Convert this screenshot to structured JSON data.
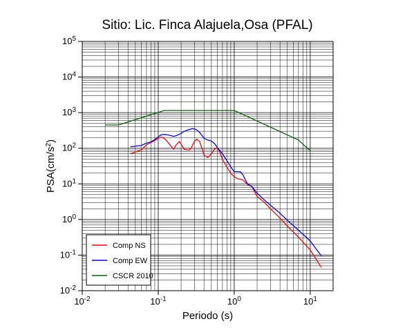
{
  "chart_data": {
    "type": "line",
    "title": "Sitio: Lic. Finca Alajuela,Osa (PFAL)",
    "xlabel": "Periodo (s)",
    "ylabel_main": "PSA(cm/s",
    "ylabel_sup": "2",
    "ylabel_end": ")",
    "xscale": "log",
    "yscale": "log",
    "xlim": [
      0.01,
      20
    ],
    "ylim": [
      0.01,
      100000
    ],
    "grid": true,
    "legend_placement": "bottom-left",
    "x_ticks": [
      {
        "value": 0.01,
        "base": "10",
        "exp": "-2"
      },
      {
        "value": 0.1,
        "base": "10",
        "exp": "-1"
      },
      {
        "value": 1,
        "base": "10",
        "exp": "0"
      },
      {
        "value": 10,
        "base": "10",
        "exp": "1"
      }
    ],
    "y_ticks": [
      {
        "value": 0.01,
        "base": "10",
        "exp": "-2"
      },
      {
        "value": 0.1,
        "base": "10",
        "exp": "-1"
      },
      {
        "value": 1,
        "base": "10",
        "exp": "0"
      },
      {
        "value": 10,
        "base": "10",
        "exp": "1"
      },
      {
        "value": 100,
        "base": "10",
        "exp": "2"
      },
      {
        "value": 1000,
        "base": "10",
        "exp": "3"
      },
      {
        "value": 10000,
        "base": "10",
        "exp": "4"
      },
      {
        "value": 100000,
        "base": "10",
        "exp": "5"
      }
    ],
    "series": [
      {
        "name": "Comp NS",
        "color": "#ff0000",
        "points": [
          [
            0.043,
            70
          ],
          [
            0.05,
            78
          ],
          [
            0.06,
            90
          ],
          [
            0.07,
            125
          ],
          [
            0.08,
            145
          ],
          [
            0.09,
            165
          ],
          [
            0.1,
            190
          ],
          [
            0.11,
            205
          ],
          [
            0.12,
            190
          ],
          [
            0.13,
            160
          ],
          [
            0.15,
            110
          ],
          [
            0.16,
            95
          ],
          [
            0.17,
            120
          ],
          [
            0.19,
            155
          ],
          [
            0.2,
            130
          ],
          [
            0.22,
            95
          ],
          [
            0.25,
            88
          ],
          [
            0.27,
            100
          ],
          [
            0.3,
            155
          ],
          [
            0.32,
            180
          ],
          [
            0.35,
            155
          ],
          [
            0.38,
            95
          ],
          [
            0.4,
            65
          ],
          [
            0.45,
            55
          ],
          [
            0.5,
            70
          ],
          [
            0.55,
            95
          ],
          [
            0.6,
            105
          ],
          [
            0.65,
            75
          ],
          [
            0.7,
            48
          ],
          [
            0.8,
            30
          ],
          [
            0.9,
            20
          ],
          [
            1.0,
            16
          ],
          [
            1.1,
            14
          ],
          [
            1.3,
            13
          ],
          [
            1.5,
            9.5
          ],
          [
            1.7,
            8.5
          ],
          [
            2.0,
            4.5
          ],
          [
            2.5,
            3.0
          ],
          [
            3.0,
            2.0
          ],
          [
            4.0,
            1.1
          ],
          [
            5.0,
            0.65
          ],
          [
            7.0,
            0.32
          ],
          [
            10.0,
            0.14
          ],
          [
            14.0,
            0.045
          ]
        ]
      },
      {
        "name": "Comp EW",
        "color": "#0000ff",
        "points": [
          [
            0.043,
            110
          ],
          [
            0.05,
            115
          ],
          [
            0.06,
            120
          ],
          [
            0.07,
            140
          ],
          [
            0.08,
            150
          ],
          [
            0.09,
            175
          ],
          [
            0.1,
            210
          ],
          [
            0.11,
            240
          ],
          [
            0.12,
            245
          ],
          [
            0.13,
            240
          ],
          [
            0.15,
            225
          ],
          [
            0.16,
            215
          ],
          [
            0.18,
            235
          ],
          [
            0.2,
            260
          ],
          [
            0.22,
            300
          ],
          [
            0.25,
            330
          ],
          [
            0.28,
            355
          ],
          [
            0.3,
            350
          ],
          [
            0.32,
            330
          ],
          [
            0.35,
            280
          ],
          [
            0.38,
            225
          ],
          [
            0.4,
            190
          ],
          [
            0.45,
            170
          ],
          [
            0.5,
            160
          ],
          [
            0.55,
            135
          ],
          [
            0.6,
            105
          ],
          [
            0.7,
            70
          ],
          [
            0.8,
            45
          ],
          [
            0.9,
            30
          ],
          [
            1.0,
            22
          ],
          [
            1.2,
            22
          ],
          [
            1.3,
            18
          ],
          [
            1.4,
            13
          ],
          [
            1.5,
            10
          ],
          [
            1.7,
            8.5
          ],
          [
            2.0,
            5.5
          ],
          [
            2.5,
            3.5
          ],
          [
            3.0,
            2.5
          ],
          [
            4.0,
            1.5
          ],
          [
            5.0,
            0.95
          ],
          [
            7.0,
            0.5
          ],
          [
            10.0,
            0.25
          ],
          [
            14.0,
            0.095
          ]
        ]
      },
      {
        "name": "CSCR 2010",
        "color": "#006600",
        "points": [
          [
            0.02,
            450
          ],
          [
            0.03,
            450
          ],
          [
            0.12,
            1150
          ],
          [
            1.0,
            1150
          ],
          [
            7.0,
            170
          ],
          [
            10.0,
            85
          ]
        ]
      }
    ]
  }
}
